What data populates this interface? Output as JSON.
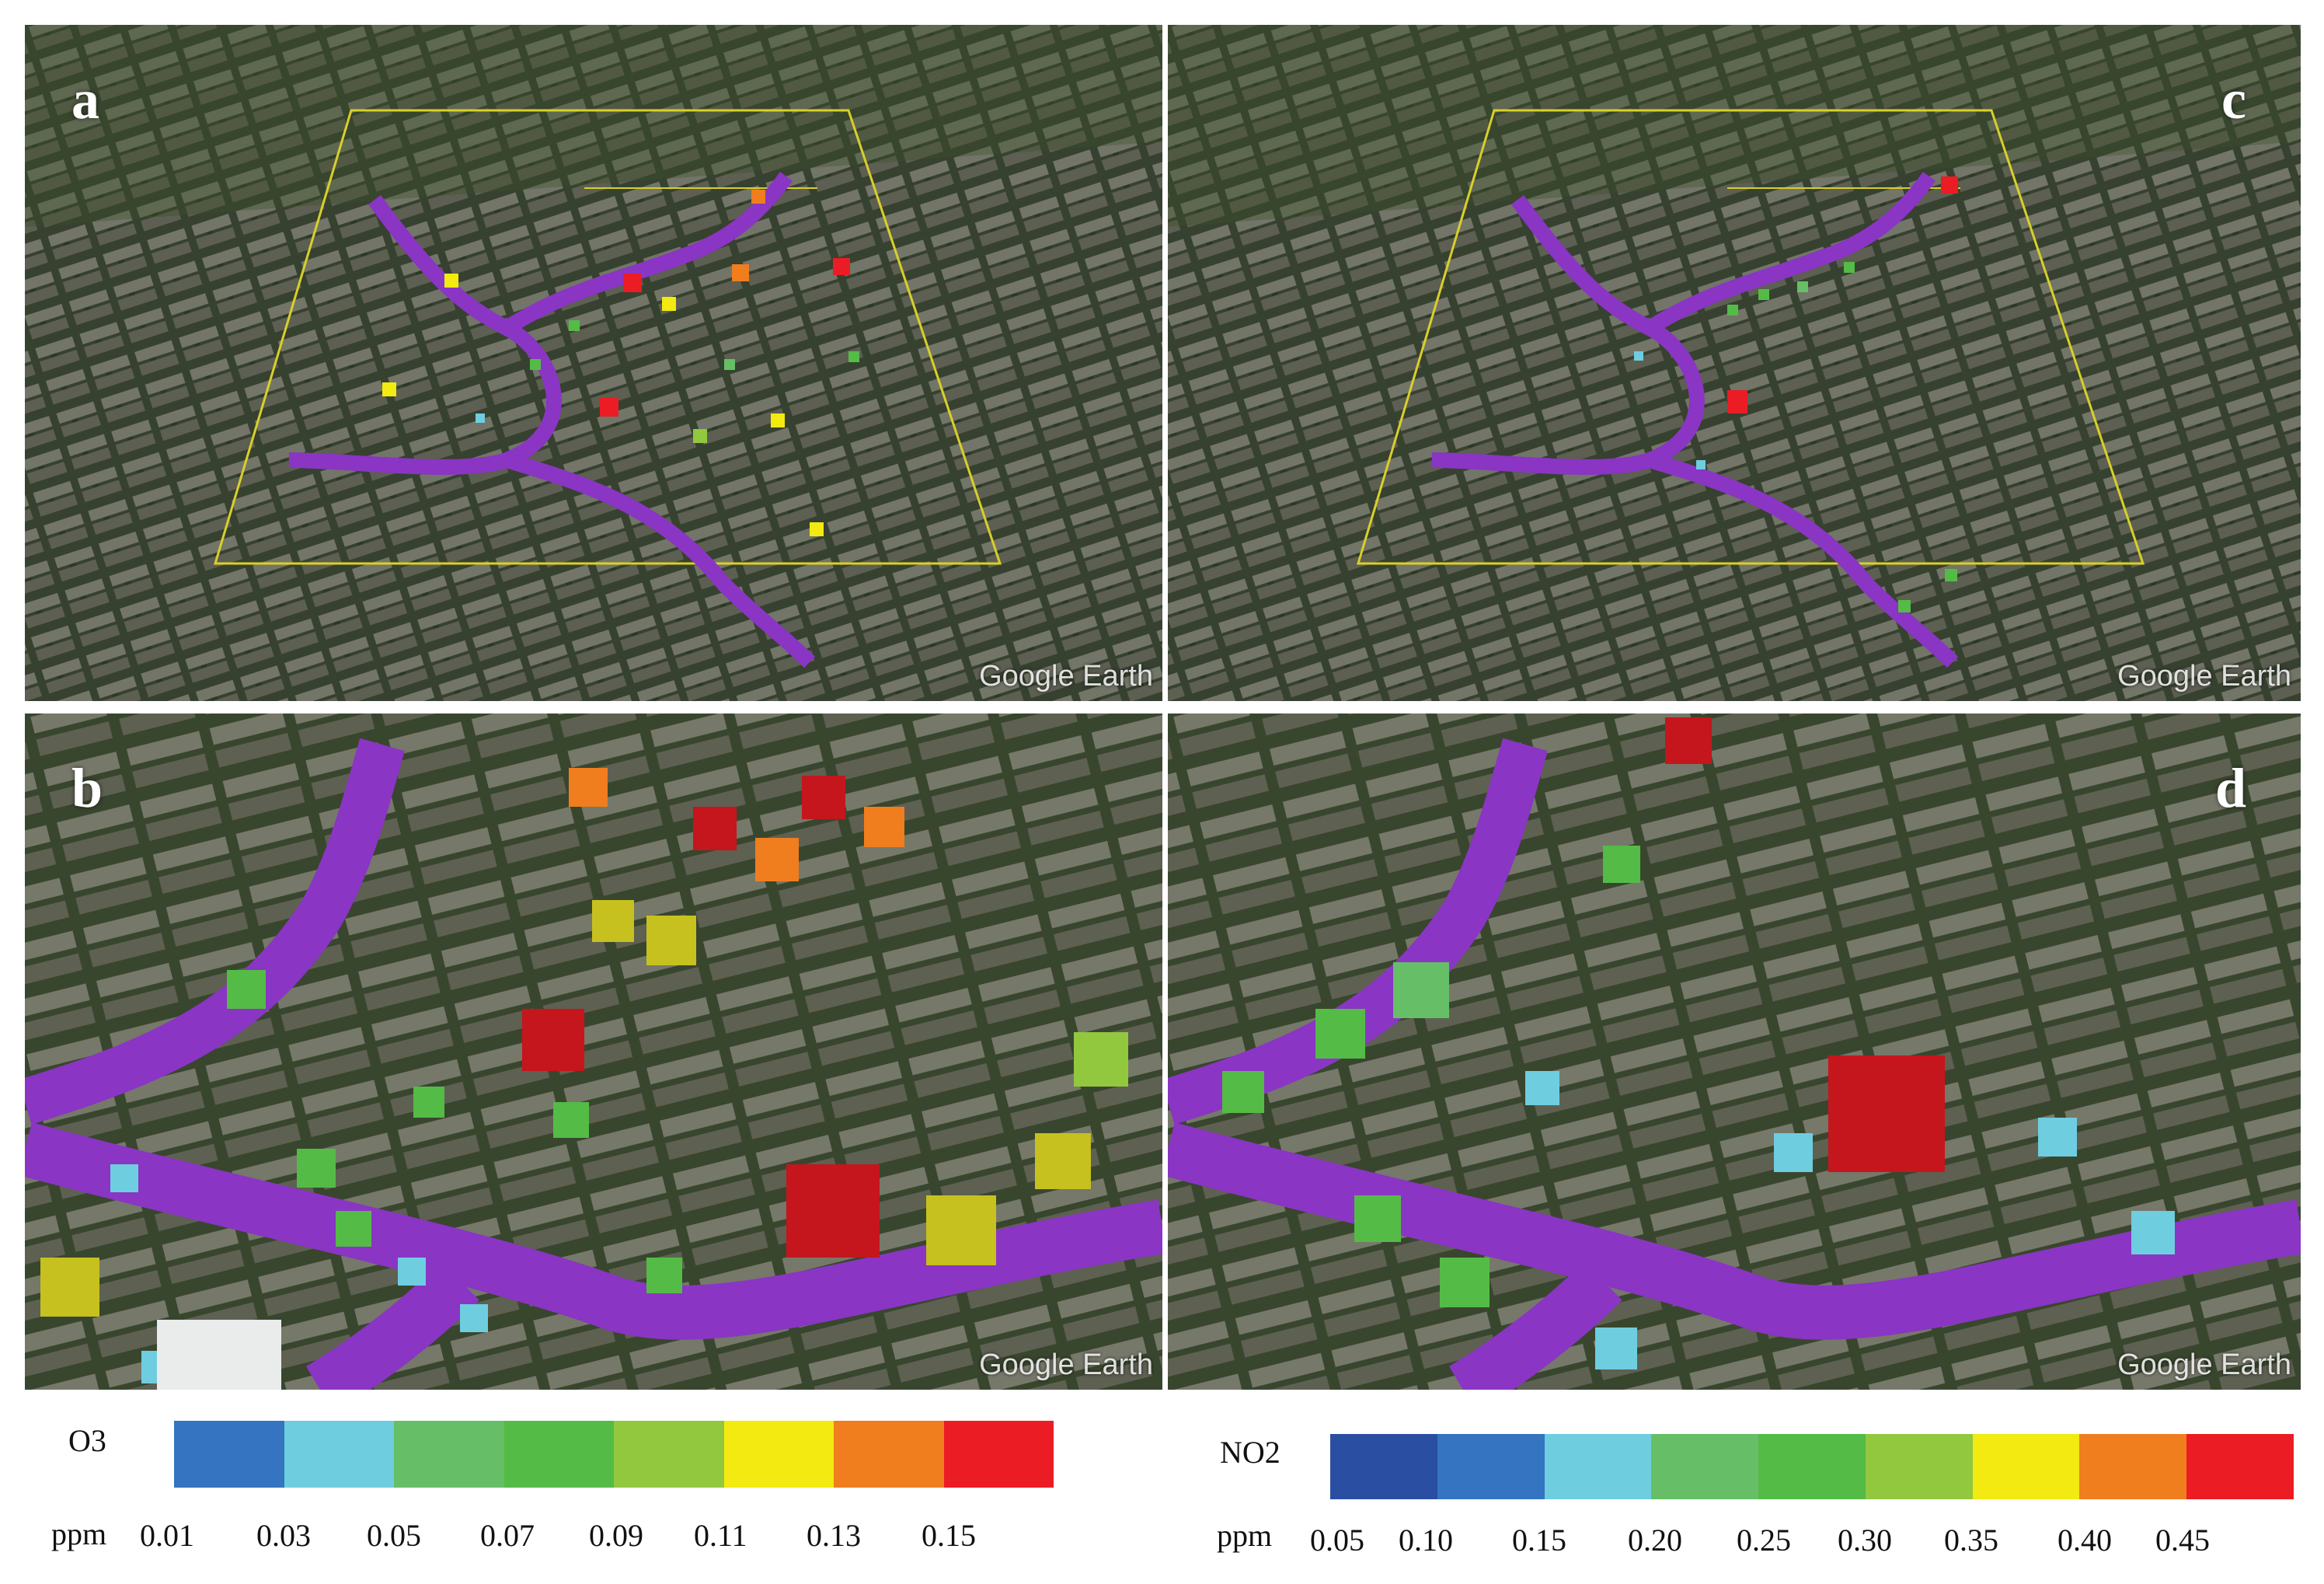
{
  "panels": [
    {
      "id": "a",
      "label": "a",
      "watermark": "Google Earth"
    },
    {
      "id": "b",
      "label": "b",
      "watermark": "Google Earth"
    },
    {
      "id": "c",
      "label": "c",
      "watermark": "Google Earth"
    },
    {
      "id": "d",
      "label": "d",
      "watermark": "Google Earth"
    }
  ],
  "legend_o3": {
    "title": "O3",
    "unit": "ppm",
    "ticks": [
      "0.01",
      "0.03",
      "0.05",
      "0.07",
      "0.09",
      "0.11",
      "0.13",
      "0.15"
    ],
    "colors": [
      "#3474c0",
      "#6fcde0",
      "#66bf66",
      "#54bb47",
      "#92c83e",
      "#f2ea10",
      "#f07d1e",
      "#ec1c24"
    ]
  },
  "legend_no2": {
    "title": "NO2",
    "unit": "ppm",
    "ticks": [
      "0.05",
      "0.10",
      "0.15",
      "0.20",
      "0.25",
      "0.30",
      "0.35",
      "0.40",
      "0.45"
    ],
    "colors": [
      "#2a4ea2",
      "#3474c0",
      "#6fcde0",
      "#66bf66",
      "#54bb47",
      "#92c83e",
      "#f2ea10",
      "#f07d1e",
      "#ec1c24"
    ]
  }
}
